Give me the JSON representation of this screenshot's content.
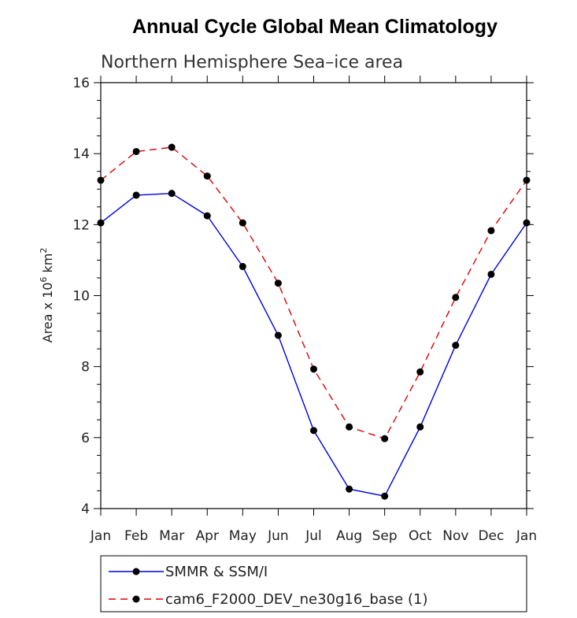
{
  "chart_data": {
    "type": "line",
    "title": "Annual Cycle Global Mean Climatology",
    "subtitle": "Northern Hemisphere Sea–ice area",
    "ylabel_main": "Area x 10",
    "ylabel_sup1": "6",
    "ylabel_mid": " km",
    "ylabel_sup2": "2",
    "categories": [
      "Jan",
      "Feb",
      "Mar",
      "Apr",
      "May",
      "Jun",
      "Jul",
      "Aug",
      "Sep",
      "Oct",
      "Nov",
      "Dec",
      "Jan"
    ],
    "ylim": [
      4,
      16
    ],
    "yticks": [
      4,
      6,
      8,
      10,
      12,
      14,
      16
    ],
    "series": [
      {
        "name": "SMMR & SSM/I",
        "color": "#0000dd",
        "dash": "solid",
        "values": [
          12.05,
          12.83,
          12.88,
          12.25,
          10.82,
          8.88,
          6.2,
          4.55,
          4.35,
          6.3,
          8.6,
          10.6,
          12.05
        ]
      },
      {
        "name": "cam6_F2000_DEV_ne30g16_base (1)",
        "color": "#dd0000",
        "dash": "dashed",
        "values": [
          13.25,
          14.06,
          14.18,
          13.37,
          12.05,
          10.35,
          7.93,
          6.3,
          5.97,
          7.85,
          9.95,
          11.83,
          13.25
        ]
      }
    ]
  }
}
